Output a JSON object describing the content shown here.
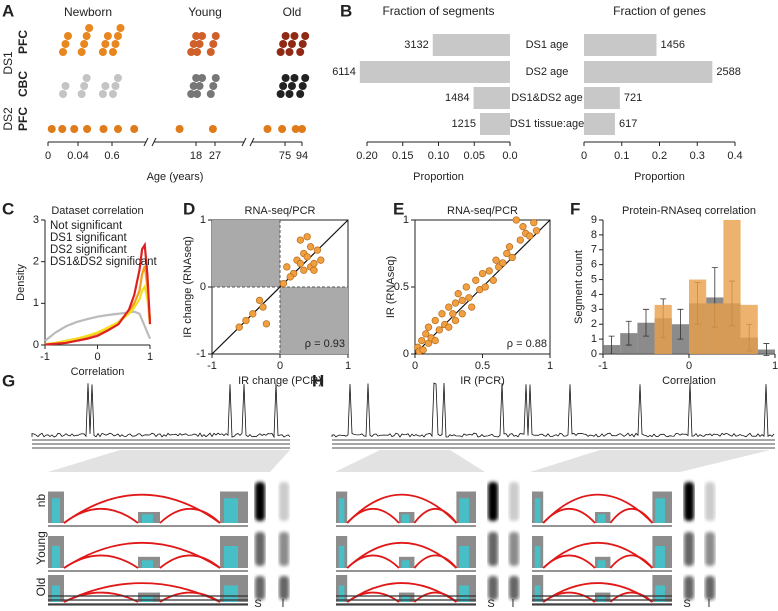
{
  "chart_data": [
    {
      "type": "strip",
      "panel": "A",
      "groups": [
        "Newborn",
        "Young",
        "Old"
      ],
      "xlabel": "Age (years)",
      "xlim": [
        0,
        94
      ],
      "xticks": [
        0,
        0.04,
        0.6,
        18,
        27,
        75,
        94
      ],
      "datasets": [
        {
          "name": "DS1",
          "rows": [
            {
              "name": "PFC",
              "color": "#e07b1a",
              "series": [
                {
                  "color": "#e8861f",
                  "x": [
                    0.02,
                    0.02,
                    0.02,
                    0.1,
                    0.1,
                    0.1,
                    0.1,
                    0.45,
                    0.45,
                    0.45,
                    0.8,
                    0.8,
                    0.8,
                    0.8
                  ]
                },
                {
                  "color": "#d0602a",
                  "x": [
                    17,
                    17,
                    17,
                    18.5,
                    18.5,
                    18.5,
                    25,
                    25,
                    25
                  ]
                },
                {
                  "color": "#902a14",
                  "x": [
                    72,
                    72,
                    72,
                    80,
                    80,
                    80,
                    92,
                    92,
                    92
                  ]
                }
              ]
            },
            {
              "name": "CBC",
              "color": "#b0b0b0",
              "series": [
                {
                  "color": "#c4c4c4",
                  "x": [
                    0.02,
                    0.02,
                    0.1,
                    0.1,
                    0.1,
                    0.45,
                    0.45,
                    0.8,
                    0.8,
                    0.8
                  ]
                },
                {
                  "color": "#777777",
                  "x": [
                    17,
                    17,
                    17,
                    18.5,
                    18.5,
                    18.5,
                    25,
                    25,
                    25
                  ]
                },
                {
                  "color": "#222222",
                  "x": [
                    72,
                    72,
                    72,
                    80,
                    80,
                    80,
                    92,
                    92,
                    92
                  ]
                }
              ]
            }
          ]
        },
        {
          "name": "DS2",
          "rows": [
            {
              "name": "PFC",
              "color": "#e07b1a",
              "series": [
                {
                  "color": "#e07b1a",
                  "x": [
                    0.005,
                    0.019,
                    0.035,
                    0.19,
                    0.46,
                    1.84,
                    5.2,
                    14.6,
                    26,
                    63,
                    73,
                    87,
                    94
                  ]
                }
              ]
            }
          ]
        }
      ]
    },
    {
      "type": "bar",
      "panel": "B",
      "orientation": "horizontal",
      "xlabel": "Proportion",
      "categories": [
        "DS1 age",
        "DS2 age",
        "DS1&DS2 age",
        "DS1 tissue:age"
      ],
      "series": [
        {
          "name": "Fraction of segments",
          "color": "#c8c8c8",
          "values": [
            0.108,
            0.21,
            0.051,
            0.042
          ],
          "counts": [
            3132,
            6114,
            1484,
            1215
          ],
          "xlim": [
            0.2,
            0
          ],
          "xticks": [
            {
              "value": 0.2,
              "label": "0.20"
            },
            {
              "value": 0.15,
              "label": "0.15"
            },
            {
              "value": 0.1,
              "label": "0.10"
            },
            {
              "value": 0.05,
              "label": "0.05"
            },
            {
              "value": 0,
              "label": "0.0"
            }
          ]
        },
        {
          "name": "Fraction of genes",
          "color": "#c8c8c8",
          "values": [
            0.192,
            0.34,
            0.095,
            0.082
          ],
          "counts": [
            1456,
            2588,
            721,
            617
          ],
          "xlim": [
            0,
            0.4
          ],
          "xticks": [
            0,
            0.1,
            0.2,
            0.3,
            0.4
          ]
        }
      ]
    },
    {
      "type": "line",
      "panel": "C",
      "title": "Dataset correlation",
      "xlabel": "Correlation",
      "ylabel": "Density",
      "xlim": [
        -1,
        1
      ],
      "xticks": [
        -1,
        0,
        1
      ],
      "ylim": [
        0,
        3
      ],
      "yticks": [
        0,
        1,
        2,
        3
      ],
      "legend": "upper left",
      "x": [
        -1,
        -0.8,
        -0.6,
        -0.4,
        -0.2,
        0,
        0.2,
        0.4,
        0.6,
        0.7,
        0.8,
        0.85,
        0.9,
        0.95,
        1
      ],
      "series": [
        {
          "name": "Not significant",
          "color": "#bbbbbb",
          "values": [
            0.1,
            0.3,
            0.45,
            0.55,
            0.62,
            0.68,
            0.72,
            0.75,
            0.78,
            0.8,
            0.75,
            0.6,
            0.45,
            0.3,
            0.15
          ]
        },
        {
          "name": "DS1 significant",
          "color": "#f0a020",
          "values": [
            0.02,
            0.05,
            0.1,
            0.15,
            0.2,
            0.28,
            0.4,
            0.55,
            0.8,
            1.0,
            1.3,
            1.7,
            1.9,
            1.4,
            0.6
          ]
        },
        {
          "name": "DS2 significant",
          "color": "#f2df1e",
          "values": [
            0.02,
            0.05,
            0.1,
            0.15,
            0.22,
            0.3,
            0.42,
            0.55,
            0.75,
            0.9,
            1.1,
            1.3,
            1.4,
            1.1,
            0.5
          ]
        },
        {
          "name": "DS1&DS2 significant",
          "color": "#e02020",
          "values": [
            0.01,
            0.03,
            0.05,
            0.1,
            0.15,
            0.22,
            0.35,
            0.5,
            0.85,
            1.2,
            1.8,
            2.3,
            2.4,
            1.7,
            0.5
          ]
        }
      ]
    },
    {
      "type": "scatter",
      "panel": "D",
      "title": "RNA-seq/PCR",
      "xlabel": "IR change (PCR)",
      "ylabel": "IR change (RNAseq)",
      "xlim": [
        -1,
        1
      ],
      "xticks": [
        -1,
        0,
        1
      ],
      "ylim": [
        -1,
        1
      ],
      "yticks": [
        -1,
        0,
        1
      ],
      "shaded_quadrants": true,
      "diagonal": true,
      "annotation": "ρ = 0.93",
      "color": "#f0a040",
      "x": [
        0.1,
        0.2,
        0.25,
        0.3,
        0.35,
        0.4,
        0.45,
        0.5,
        0.55,
        0.6,
        0.3,
        0.4,
        0.2,
        0.5,
        0.15,
        -0.3,
        -0.4,
        -0.6,
        -0.2,
        -0.25,
        -0.5,
        0.05,
        0.35,
        0.45
      ],
      "values": [
        0.3,
        0.2,
        0.4,
        0.35,
        0.5,
        0.45,
        0.3,
        0.35,
        0.55,
        0.4,
        0.7,
        0.75,
        0.2,
        0.25,
        0.15,
        -0.2,
        -0.4,
        -0.6,
        -0.55,
        -0.3,
        -0.5,
        0.05,
        0.25,
        0.6
      ]
    },
    {
      "type": "scatter",
      "panel": "E",
      "title": "RNA-seq/PCR",
      "xlabel": "IR (PCR)",
      "ylabel": "IR (RNAseq)",
      "xlim": [
        0,
        1
      ],
      "xticks": [
        0,
        0.5,
        1
      ],
      "ylim": [
        0,
        1
      ],
      "yticks": [
        0,
        0.5,
        1
      ],
      "diagonal": true,
      "annotation": "ρ = 0.88",
      "color": "#f0a040",
      "x": [
        0.02,
        0.03,
        0.05,
        0.06,
        0.08,
        0.1,
        0.1,
        0.12,
        0.15,
        0.15,
        0.18,
        0.2,
        0.22,
        0.25,
        0.25,
        0.28,
        0.3,
        0.3,
        0.32,
        0.35,
        0.35,
        0.38,
        0.4,
        0.42,
        0.45,
        0.48,
        0.5,
        0.52,
        0.55,
        0.58,
        0.6,
        0.62,
        0.65,
        0.68,
        0.7,
        0.72,
        0.75,
        0.78,
        0.8,
        0.82,
        0.85,
        0.88,
        0.9
      ],
      "values": [
        0.05,
        0.02,
        0.1,
        0.03,
        0.15,
        0.08,
        0.2,
        0.12,
        0.25,
        0.1,
        0.18,
        0.3,
        0.22,
        0.35,
        0.2,
        0.3,
        0.38,
        0.25,
        0.45,
        0.4,
        0.3,
        0.5,
        0.42,
        0.35,
        0.55,
        0.48,
        0.6,
        0.5,
        0.62,
        0.55,
        0.7,
        0.65,
        0.68,
        0.75,
        0.8,
        0.72,
        1.0,
        0.85,
        0.95,
        0.9,
        0.88,
        0.98,
        0.92
      ]
    },
    {
      "type": "histogram",
      "panel": "F",
      "title": "Protein-RNAseq correlation",
      "xlabel": "Correlation",
      "ylabel": "Segment count",
      "xlim": [
        -1,
        1
      ],
      "xticks": [
        -1,
        0,
        1
      ],
      "ylim": [
        0,
        9
      ],
      "yticks": [
        0,
        1,
        2,
        3,
        4,
        5,
        6,
        7,
        8,
        9
      ],
      "bins": [
        -1,
        -0.8,
        -0.6,
        -0.4,
        -0.2,
        0,
        0.2,
        0.4,
        0.6,
        0.8,
        1
      ],
      "series": [
        {
          "color": "#6e6e6e",
          "values": [
            0.6,
            1.4,
            2.1,
            2.4,
            2.0,
            3.4,
            3.8,
            3.4,
            1.1,
            0.3
          ],
          "errors": [
            0.6,
            0.8,
            0.9,
            1.3,
            1.0,
            1.4,
            2.0,
            1.5,
            0.9,
            0.4
          ]
        },
        {
          "color": "#e8a04a",
          "values": [
            0,
            0,
            0,
            3.3,
            0,
            5,
            3.4,
            9,
            3.3,
            0
          ]
        }
      ]
    }
  ],
  "diagrams": [
    {
      "panel": "G",
      "rows": [
        "nb",
        "Young",
        "Old"
      ],
      "labels": [
        "S",
        "l"
      ]
    },
    {
      "panel": "H"
    }
  ]
}
